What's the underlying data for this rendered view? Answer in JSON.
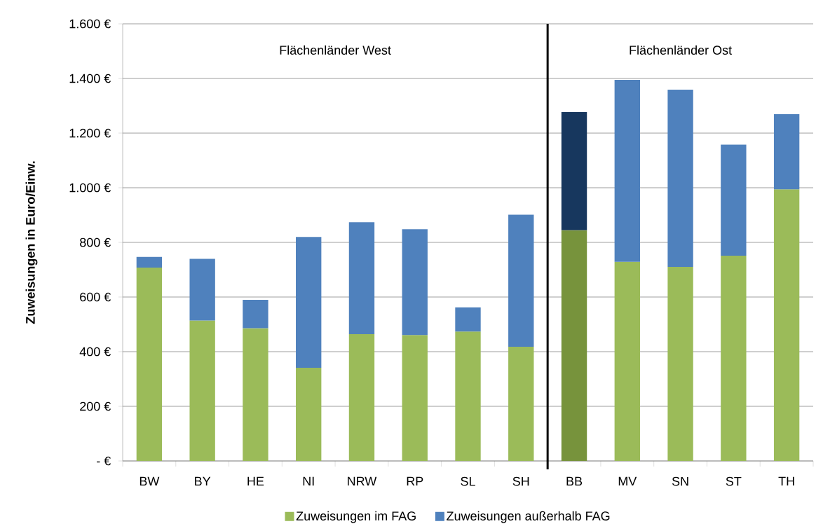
{
  "chart_data": {
    "type": "bar",
    "stacked": true,
    "categories": [
      "BW",
      "BY",
      "HE",
      "NI",
      "NRW",
      "RP",
      "SL",
      "SH",
      "BB",
      "MV",
      "SN",
      "ST",
      "TH"
    ],
    "series": [
      {
        "name": "Zuweisungen im FAG",
        "color": "#9bbb59",
        "colors": [
          "#9bbb59",
          "#9bbb59",
          "#9bbb59",
          "#9bbb59",
          "#9bbb59",
          "#9bbb59",
          "#9bbb59",
          "#9bbb59",
          "#77933c",
          "#9bbb59",
          "#9bbb59",
          "#9bbb59",
          "#9bbb59"
        ],
        "values": [
          708,
          514,
          486,
          341,
          464,
          461,
          474,
          418,
          845,
          729,
          710,
          751,
          994
        ]
      },
      {
        "name": "Zuweisungen außerhalb FAG",
        "color": "#4f81bd",
        "colors": [
          "#4f81bd",
          "#4f81bd",
          "#4f81bd",
          "#4f81bd",
          "#4f81bd",
          "#4f81bd",
          "#4f81bd",
          "#4f81bd",
          "#17375e",
          "#4f81bd",
          "#4f81bd",
          "#4f81bd",
          "#4f81bd"
        ],
        "values": [
          39,
          226,
          104,
          479,
          410,
          387,
          88,
          483,
          432,
          666,
          649,
          407,
          275
        ]
      }
    ],
    "ylabel": "Zuweisungen in Euro/Einw.",
    "ylim": [
      0,
      1600
    ],
    "yticks": [
      {
        "value": 0,
        "label": "- €"
      },
      {
        "value": 200,
        "label": "200 €"
      },
      {
        "value": 400,
        "label": "400 €"
      },
      {
        "value": 600,
        "label": "600 €"
      },
      {
        "value": 800,
        "label": "800 €"
      },
      {
        "value": 1000,
        "label": "1.000 €"
      },
      {
        "value": 1200,
        "label": "1.200 €"
      },
      {
        "value": 1400,
        "label": "1.400 €"
      },
      {
        "value": 1600,
        "label": "1.600 €"
      }
    ],
    "grid": "y",
    "legend": "bottom",
    "ref_lines": [
      {
        "axis": "x",
        "value": "BB",
        "color": "#000000"
      }
    ],
    "annotations": [
      "Flächenländer West",
      "Flächenländer Ost"
    ]
  }
}
